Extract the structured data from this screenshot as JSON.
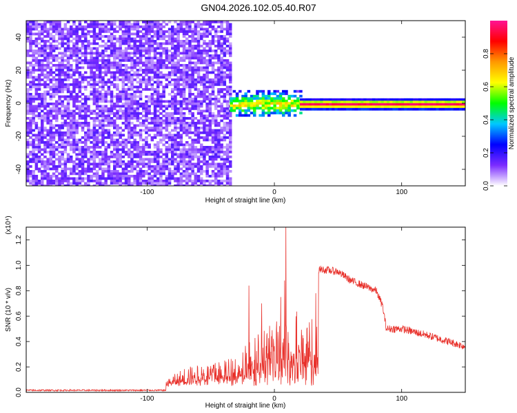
{
  "title": "GN04.2026.102.05.40.R07",
  "chart_data": [
    {
      "id": "spectrogram",
      "type": "heatmap",
      "xlabel": "Height of straight line (km)",
      "ylabel": "Frequency (Hz)",
      "xlim": [
        -195,
        150
      ],
      "ylim": [
        -50,
        50
      ],
      "xticks": [
        -100,
        0,
        100
      ],
      "xtick_labels": [
        "-100",
        "0",
        "100"
      ],
      "yticks": [
        -40,
        -20,
        0,
        20,
        40
      ],
      "ytick_labels": [
        "-40",
        "-20",
        "0",
        "20",
        "40"
      ],
      "regions": [
        {
          "x_range": [
            -195,
            -35
          ],
          "freq_range": [
            -50,
            50
          ],
          "description_level": "noise",
          "amplitude": 0.1
        },
        {
          "x_range": [
            -35,
            20
          ],
          "freq_range": [
            -8,
            8
          ],
          "amplitude": 0.4
        },
        {
          "x_range": [
            20,
            150
          ],
          "freq_range": [
            -3,
            3
          ],
          "amplitude": 0.9
        }
      ],
      "colorbar": {
        "label": "Normalized spectral amplitude",
        "range": [
          0,
          1
        ],
        "ticks": [
          0.0,
          0.2,
          0.4,
          0.6,
          0.8
        ],
        "tick_labels": [
          "0.0",
          "0.2",
          "0.4",
          "0.6",
          "0.8"
        ],
        "colors": [
          "#ffffff",
          "#7b2cff",
          "#0000ff",
          "#00c8ff",
          "#00ff00",
          "#ffff00",
          "#ff9900",
          "#ff0000",
          "#ff1493"
        ]
      }
    },
    {
      "id": "snr",
      "type": "line",
      "xlabel": "Height of straight line (km)",
      "ylabel": "SNR (10 * v/v)",
      "scale_label": "(x10⁴)",
      "xlim": [
        -195,
        150
      ],
      "ylim": [
        0,
        1.3
      ],
      "xticks": [
        -100,
        0,
        100
      ],
      "xtick_labels": [
        "-100",
        "0",
        "100"
      ],
      "yticks": [
        0.0,
        0.2,
        0.4,
        0.6,
        0.8,
        1.0,
        1.2
      ],
      "ytick_labels": [
        "0.0",
        "0.2",
        "0.4",
        "0.6",
        "0.8",
        "1.0",
        "1.2"
      ],
      "line_color": "#e8302a",
      "envelope": [
        {
          "x": -195,
          "y": 0.02
        },
        {
          "x": -90,
          "y": 0.02
        },
        {
          "x": -82,
          "y": 0.12
        },
        {
          "x": -70,
          "y": 0.2
        },
        {
          "x": -55,
          "y": 0.22
        },
        {
          "x": -40,
          "y": 0.25
        },
        {
          "x": -30,
          "y": 0.3
        },
        {
          "x": -20,
          "y": 0.4
        },
        {
          "x": -10,
          "y": 0.48
        },
        {
          "x": 0,
          "y": 0.55
        },
        {
          "x": 10,
          "y": 0.62
        },
        {
          "x": 20,
          "y": 0.68
        },
        {
          "x": 25,
          "y": 0.5
        },
        {
          "x": 30,
          "y": 0.65
        },
        {
          "x": 35,
          "y": 0.97
        },
        {
          "x": 50,
          "y": 0.95
        },
        {
          "x": 60,
          "y": 0.88
        },
        {
          "x": 70,
          "y": 0.84
        },
        {
          "x": 80,
          "y": 0.8
        },
        {
          "x": 85,
          "y": 0.68
        },
        {
          "x": 88,
          "y": 0.5
        },
        {
          "x": 100,
          "y": 0.5
        },
        {
          "x": 120,
          "y": 0.45
        },
        {
          "x": 150,
          "y": 0.36
        }
      ],
      "peaks": [
        {
          "x": 9,
          "y": 1.32
        },
        {
          "x": 8,
          "y": 0.88
        },
        {
          "x": -20,
          "y": 0.84
        },
        {
          "x": 5,
          "y": 0.75
        },
        {
          "x": -10,
          "y": 0.7
        }
      ]
    }
  ]
}
